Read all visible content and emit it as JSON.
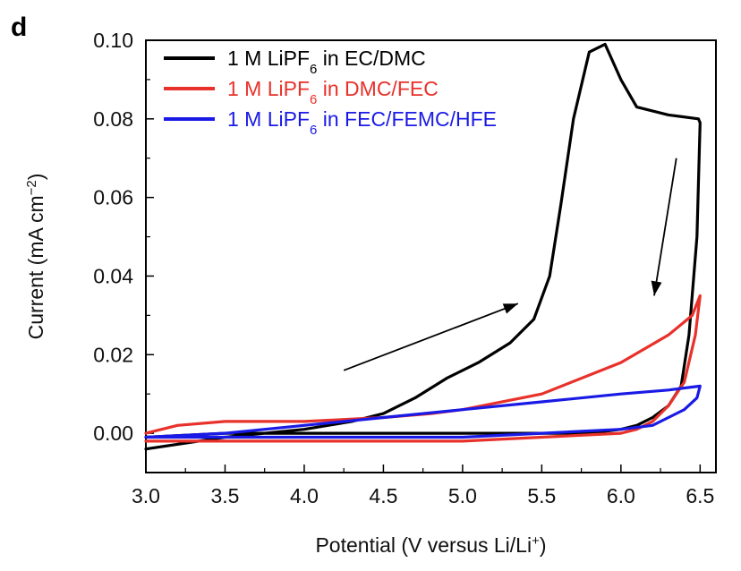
{
  "panel_label": "d",
  "chart_data": {
    "type": "line",
    "xlabel": "Potential (V versus Li/Li",
    "xlabel_sup": "+",
    "xlabel_close": ")",
    "ylabel": "Current (mA cm",
    "ylabel_sup": "−2",
    "ylabel_close": ")",
    "xlim": [
      3.0,
      6.6
    ],
    "ylim": [
      -0.01,
      0.1
    ],
    "xticks": [
      3.0,
      3.5,
      4.0,
      4.5,
      5.0,
      5.5,
      6.0,
      6.5
    ],
    "xtick_labels": [
      "3.0",
      "3.5",
      "4.0",
      "4.5",
      "5.0",
      "5.5",
      "6.0",
      "6.5"
    ],
    "yticks": [
      0.0,
      0.02,
      0.04,
      0.06,
      0.08,
      0.1
    ],
    "ytick_labels": [
      "0.00",
      "0.02",
      "0.04",
      "0.06",
      "0.08",
      "0.10"
    ],
    "grid": false,
    "legend_position": "top-left",
    "series": [
      {
        "name": "1 M LiPF6 in EC/DMC",
        "legend_prefix": "1 M LiPF",
        "legend_sub": "6",
        "legend_suffix": " in EC/DMC",
        "color": "#000000",
        "x": [
          3.0,
          3.5,
          4.0,
          4.3,
          4.5,
          4.7,
          4.9,
          5.1,
          5.3,
          5.45,
          5.55,
          5.62,
          5.7,
          5.8,
          5.9,
          6.0,
          6.1,
          6.3,
          6.49,
          6.5,
          6.48,
          6.43,
          6.38,
          6.3,
          6.2,
          6.1,
          6.0,
          5.8,
          5.5,
          5.0,
          4.5,
          4.0,
          3.5,
          3.0
        ],
        "y": [
          -0.004,
          -0.001,
          0.001,
          0.003,
          0.005,
          0.009,
          0.014,
          0.018,
          0.023,
          0.029,
          0.04,
          0.058,
          0.08,
          0.097,
          0.099,
          0.09,
          0.083,
          0.081,
          0.08,
          0.079,
          0.05,
          0.025,
          0.012,
          0.007,
          0.004,
          0.002,
          0.001,
          0.0,
          0.0,
          0.0,
          0.0,
          0.0,
          0.0,
          -0.001
        ]
      },
      {
        "name": "1 M LiPF6 in DMC/FEC",
        "legend_prefix": "1 M LiPF",
        "legend_sub": "6",
        "legend_suffix": " in DMC/FEC",
        "color": "#e8312a",
        "x": [
          3.0,
          3.2,
          3.5,
          4.0,
          4.5,
          4.8,
          5.0,
          5.5,
          6.0,
          6.3,
          6.45,
          6.5,
          6.47,
          6.4,
          6.3,
          6.2,
          6.1,
          6.0,
          5.5,
          5.0,
          4.5,
          4.0,
          3.5,
          3.0
        ],
        "y": [
          0.0,
          0.002,
          0.003,
          0.003,
          0.004,
          0.005,
          0.006,
          0.01,
          0.018,
          0.025,
          0.03,
          0.035,
          0.025,
          0.013,
          0.007,
          0.003,
          0.001,
          0.0,
          -0.001,
          -0.002,
          -0.002,
          -0.002,
          -0.002,
          -0.002
        ]
      },
      {
        "name": "1 M LiPF6 in FEC/FEMC/HFE",
        "legend_prefix": "1 M LiPF",
        "legend_sub": "6",
        "legend_suffix": " in FEC/FEMC/HFE",
        "color": "#1a1ae6",
        "x": [
          3.0,
          3.5,
          4.0,
          4.5,
          5.0,
          5.5,
          6.0,
          6.3,
          6.5,
          6.48,
          6.4,
          6.3,
          6.2,
          6.0,
          5.5,
          5.0,
          4.5,
          4.0,
          3.5,
          3.0
        ],
        "y": [
          -0.001,
          0.0,
          0.002,
          0.004,
          0.006,
          0.008,
          0.01,
          0.011,
          0.012,
          0.009,
          0.006,
          0.004,
          0.002,
          0.001,
          0.0,
          -0.001,
          -0.001,
          -0.001,
          -0.001,
          -0.001
        ]
      }
    ],
    "annotations": [
      {
        "type": "arrow",
        "from": [
          4.25,
          0.016
        ],
        "to": [
          5.35,
          0.033
        ],
        "color": "#000000"
      },
      {
        "type": "arrow",
        "from": [
          6.35,
          0.07
        ],
        "to": [
          6.21,
          0.035
        ],
        "color": "#000000"
      }
    ]
  }
}
